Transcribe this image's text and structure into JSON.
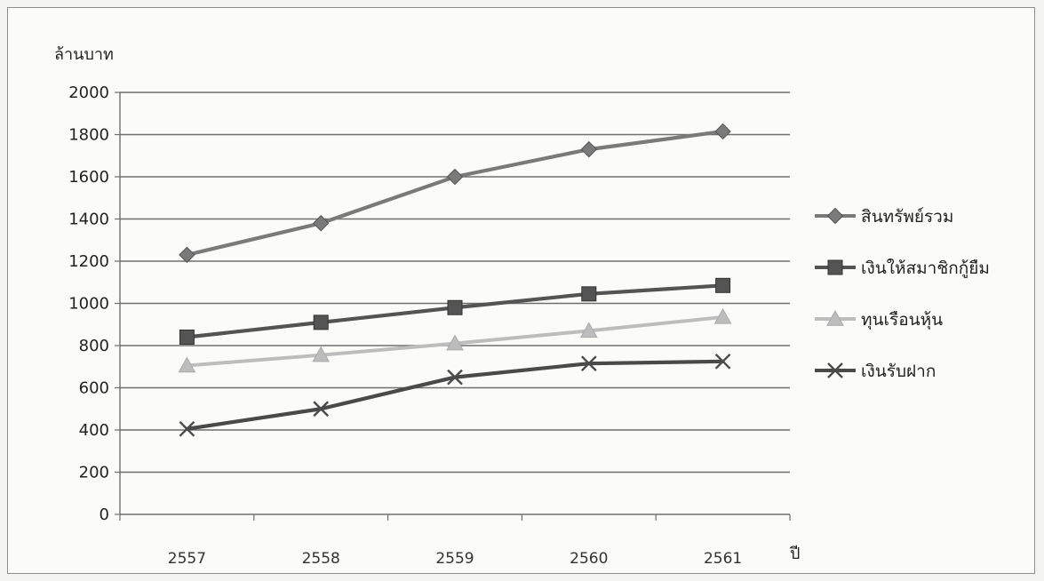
{
  "chart_data": {
    "type": "line",
    "title": "",
    "xlabel": "ปี",
    "ylabel": "ล้านบาท",
    "categories": [
      "2557",
      "2558",
      "2559",
      "2560",
      "2561"
    ],
    "ylim": [
      0,
      2000
    ],
    "yticks": [
      0,
      200,
      400,
      600,
      800,
      1000,
      1200,
      1400,
      1600,
      1800,
      2000
    ],
    "grid": true,
    "legend_position": "right",
    "series": [
      {
        "name": "สินทรัพย์รวม",
        "values": [
          1230,
          1380,
          1600,
          1730,
          1815
        ],
        "marker": "diamond",
        "color": "#7a7a7a"
      },
      {
        "name": "เงินให้สมาชิกกู้ยืม",
        "values": [
          840,
          910,
          980,
          1045,
          1085
        ],
        "marker": "square",
        "color": "#545454"
      },
      {
        "name": "ทุนเรือนหุ้น",
        "values": [
          705,
          755,
          810,
          870,
          935
        ],
        "marker": "triangle",
        "color": "#bdbdbd"
      },
      {
        "name": "เงินรับฝาก",
        "values": [
          405,
          500,
          650,
          715,
          725
        ],
        "marker": "x",
        "color": "#4a4a4a"
      }
    ]
  }
}
